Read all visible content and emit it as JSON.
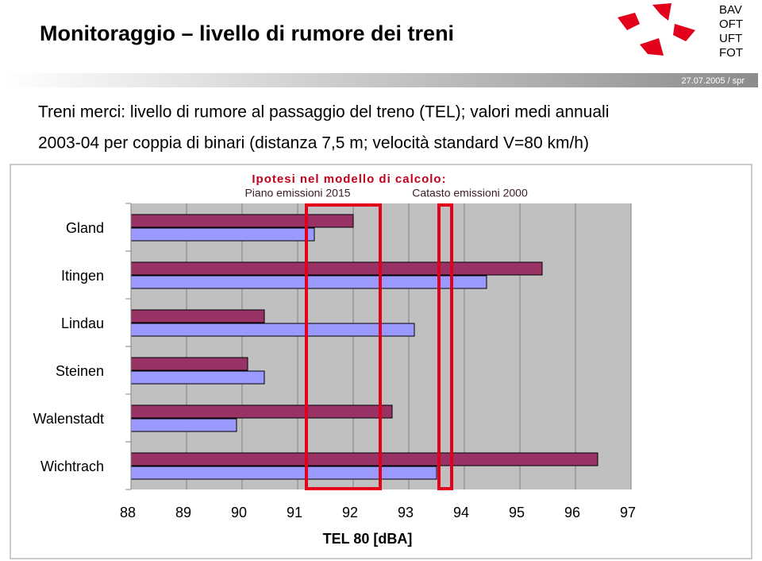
{
  "header": {
    "title": "Monitoraggio – livello di rumore dei treni",
    "logo": [
      "BAV",
      "OFT",
      "UFT",
      "FOT"
    ],
    "date": "27.07.2005 / spr"
  },
  "chart_data": {
    "type": "bar",
    "orientation": "horizontal",
    "title": [
      "Treni merci: livello di rumore al passaggio del treno (TEL); valori medi annuali",
      "2003-04 per coppia di binari (distanza 7,5 m; velocità standard V=80 km/h)"
    ],
    "legend_title": "Ipotesi nel modello di calcolo:",
    "categories": [
      "Gland",
      "Itingen",
      "Lindau",
      "Steinen",
      "Walenstadt",
      "Wichtrach"
    ],
    "series": [
      {
        "name": "Piano emissioni 2015",
        "color": "#993366",
        "values": [
          92.0,
          95.4,
          90.4,
          90.1,
          92.7,
          96.4
        ]
      },
      {
        "name": "Catasto emissioni 2000",
        "color": "#9999ff",
        "values": [
          91.3,
          94.4,
          93.1,
          90.4,
          89.9,
          93.5
        ]
      }
    ],
    "xlim": [
      88,
      97
    ],
    "xticks": [
      88,
      89,
      90,
      91,
      92,
      93,
      94,
      95,
      96,
      97
    ],
    "xlabel": "TEL 80 [dBA]",
    "grid": true
  }
}
